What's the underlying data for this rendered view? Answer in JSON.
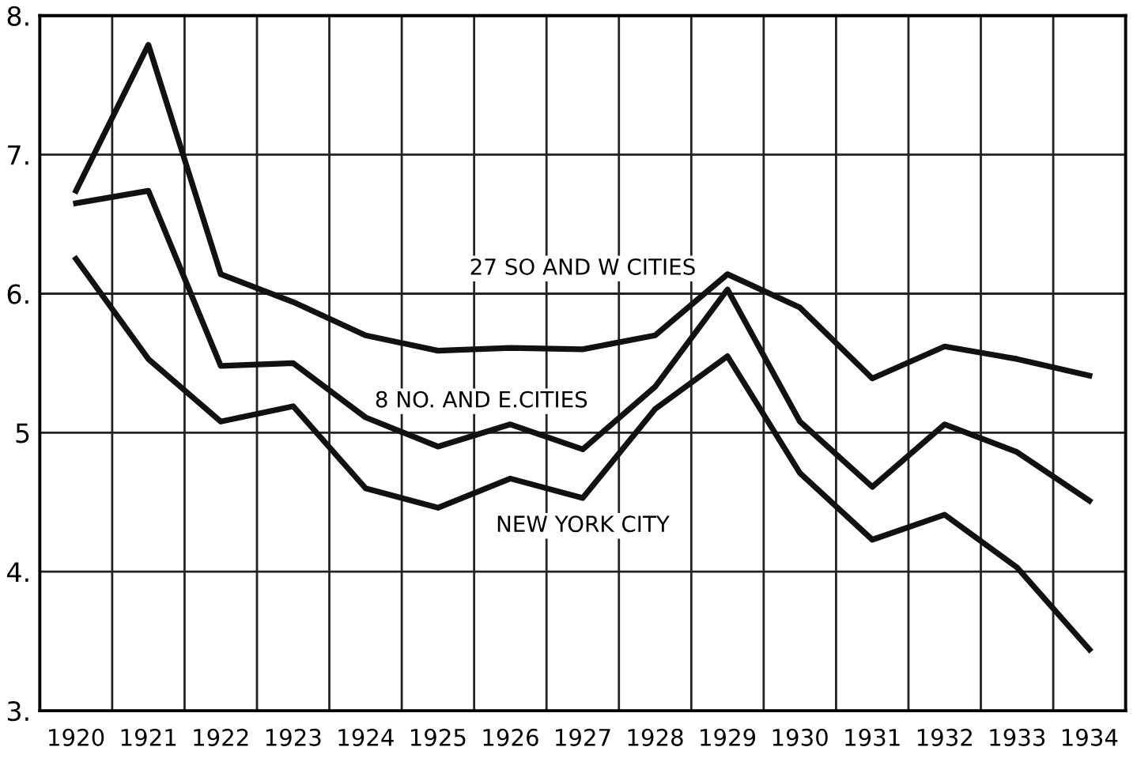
{
  "chart_data": {
    "type": "line",
    "categories": [
      "1920",
      "1921",
      "1922",
      "1923",
      "1924",
      "1925",
      "1926",
      "1927",
      "1928",
      "1929",
      "1930",
      "1931",
      "1932",
      "1933",
      "1934"
    ],
    "series": [
      {
        "name": "27 SO AND W CITIES",
        "color": "#111111",
        "values": [
          6.74,
          7.79,
          6.14,
          5.94,
          5.7,
          5.59,
          5.61,
          5.6,
          5.7,
          6.14,
          5.9,
          5.39,
          5.62,
          5.53,
          5.41
        ]
      },
      {
        "name": "8 NO. AND E.CITIES",
        "color": "#111111",
        "values": [
          6.65,
          6.74,
          5.48,
          5.5,
          5.11,
          4.9,
          5.06,
          4.88,
          5.33,
          6.03,
          5.08,
          4.61,
          5.06,
          4.86,
          4.51
        ]
      },
      {
        "name": "NEW YORK CITY",
        "color": "#111111",
        "values": [
          6.25,
          5.53,
          5.08,
          5.19,
          4.6,
          4.46,
          4.67,
          4.53,
          5.17,
          5.55,
          4.71,
          4.23,
          4.41,
          4.03,
          3.44
        ]
      }
    ],
    "ylim": [
      3,
      8
    ],
    "yticks": [
      {
        "value": 3,
        "label": "3."
      },
      {
        "value": 4,
        "label": "4."
      },
      5,
      {
        "value": 6,
        "label": "6."
      },
      {
        "value": 7,
        "label": "7."
      },
      {
        "value": 8,
        "label": "8."
      }
    ],
    "grid": true,
    "marker": "none",
    "line_style": "solid"
  }
}
